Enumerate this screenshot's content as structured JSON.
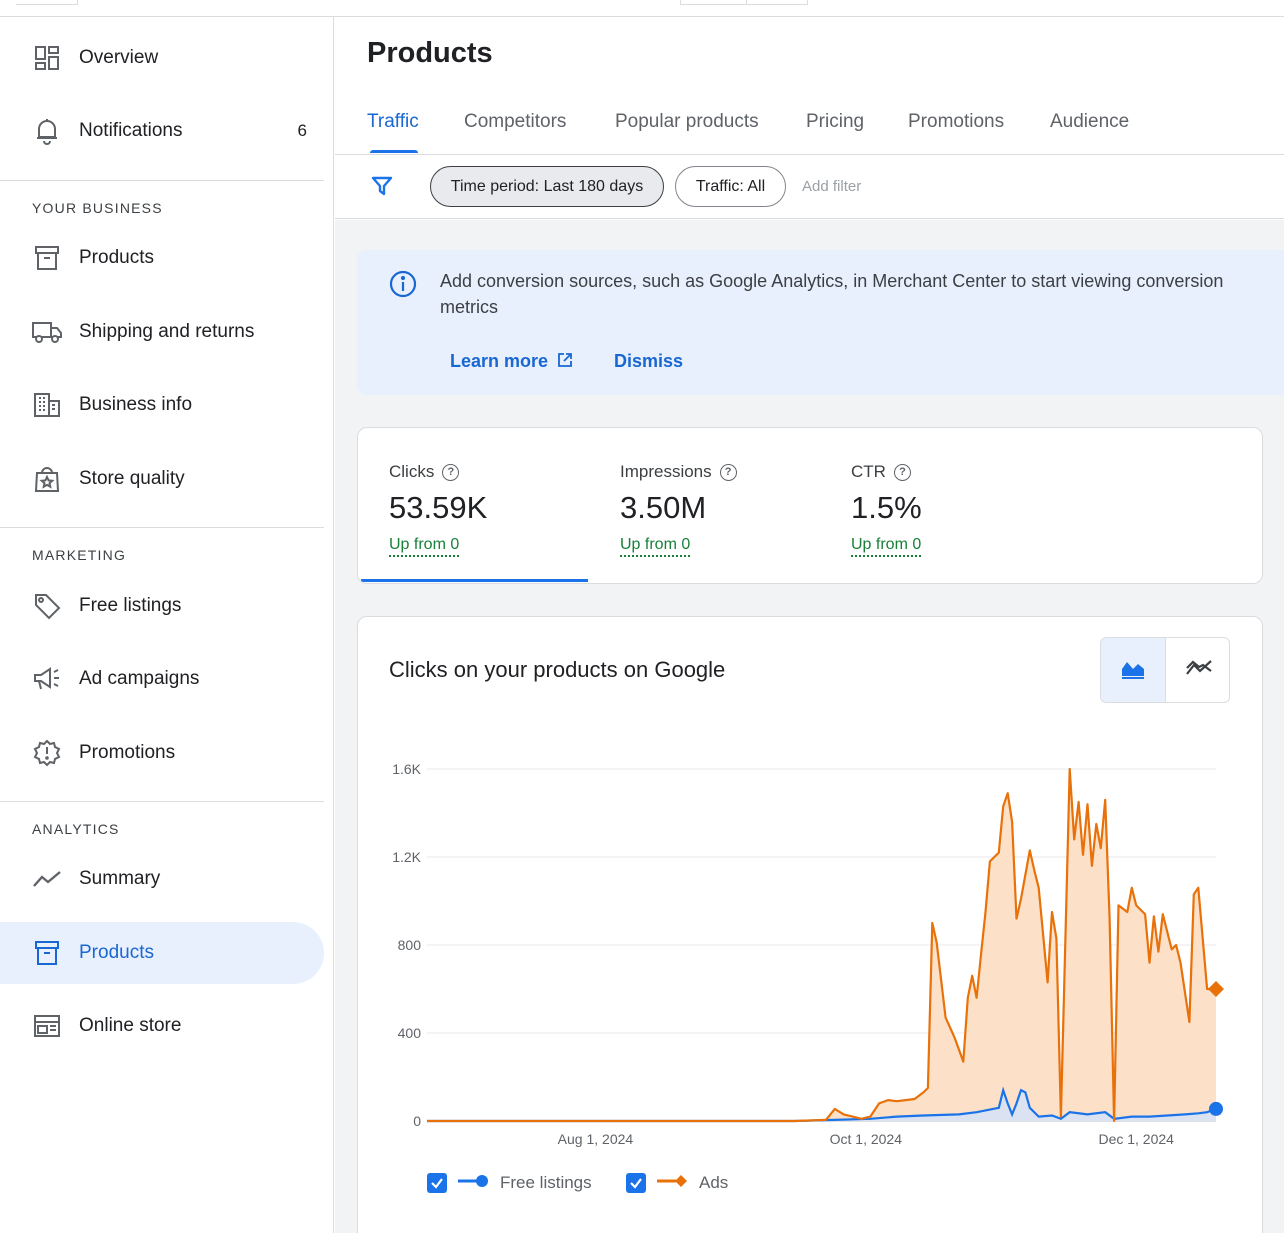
{
  "sidebar": {
    "items_top": [
      {
        "label": "Overview",
        "icon": "dashboard-icon"
      },
      {
        "label": "Notifications",
        "icon": "bell-icon",
        "count": "6"
      }
    ],
    "sections": [
      {
        "title": "YOUR BUSINESS",
        "items": [
          {
            "label": "Products",
            "icon": "archive-box-icon"
          },
          {
            "label": "Shipping and returns",
            "icon": "truck-icon"
          },
          {
            "label": "Business info",
            "icon": "building-icon"
          },
          {
            "label": "Store quality",
            "icon": "shopping-bag-star-icon"
          }
        ]
      },
      {
        "title": "MARKETING",
        "items": [
          {
            "label": "Free listings",
            "icon": "tag-icon"
          },
          {
            "label": "Ad campaigns",
            "icon": "megaphone-icon"
          },
          {
            "label": "Promotions",
            "icon": "promotion-badge-icon"
          }
        ]
      },
      {
        "title": "ANALYTICS",
        "items": [
          {
            "label": "Summary",
            "icon": "trend-line-icon"
          },
          {
            "label": "Products",
            "icon": "archive-box-icon",
            "active": true
          },
          {
            "label": "Online store",
            "icon": "storefront-window-icon"
          }
        ]
      }
    ]
  },
  "page": {
    "title": "Products",
    "tabs": [
      "Traffic",
      "Competitors",
      "Popular products",
      "Pricing",
      "Promotions",
      "Audience"
    ],
    "active_tab": "Traffic"
  },
  "filters": {
    "chips": [
      "Time period: Last 180 days",
      "Traffic: All"
    ],
    "add_filter": "Add filter"
  },
  "banner": {
    "message": "Add conversion sources, such as Google Analytics, in Merchant Center to start viewing conversion metrics",
    "learn_more": "Learn more",
    "dismiss": "Dismiss"
  },
  "metrics": [
    {
      "label": "Clicks",
      "value": "53.59K",
      "trend": "Up from 0"
    },
    {
      "label": "Impressions",
      "value": "3.50M",
      "trend": "Up from 0"
    },
    {
      "label": "CTR",
      "value": "1.5%",
      "trend": "Up from 0"
    }
  ],
  "colors": {
    "accent": "#1a73e8",
    "free_listings": "#1a73e8",
    "ads": "#e8710a",
    "ads_fill": "#fce0c8",
    "positive": "#188038"
  },
  "chart": {
    "title": "Clicks on your products on Google",
    "legend": [
      "Free listings",
      "Ads"
    ]
  },
  "chart_data": {
    "type": "area",
    "title": "Clicks on your products on Google",
    "xlabel": "",
    "ylabel": "",
    "ylim": [
      0,
      1600
    ],
    "y_ticks": [
      "0",
      "400",
      "800",
      "1.2K",
      "1.6K"
    ],
    "x_ticks": [
      "Aug 1, 2024",
      "Oct 1, 2024",
      "Dec 1, 2024"
    ],
    "x_range": [
      "2024-06-24",
      "2024-12-19"
    ],
    "grid": true,
    "legend_position": "bottom-left",
    "series": [
      {
        "name": "Ads",
        "points": [
          [
            "2024-06-24",
            0
          ],
          [
            "2024-09-15",
            0
          ],
          [
            "2024-09-22",
            5
          ],
          [
            "2024-09-24",
            55
          ],
          [
            "2024-09-26",
            30
          ],
          [
            "2024-09-28",
            20
          ],
          [
            "2024-09-30",
            10
          ],
          [
            "2024-10-02",
            20
          ],
          [
            "2024-10-04",
            80
          ],
          [
            "2024-10-06",
            95
          ],
          [
            "2024-10-08",
            90
          ],
          [
            "2024-10-10",
            95
          ],
          [
            "2024-10-12",
            100
          ],
          [
            "2024-10-14",
            130
          ],
          [
            "2024-10-15",
            150
          ],
          [
            "2024-10-16",
            900
          ],
          [
            "2024-10-17",
            810
          ],
          [
            "2024-10-19",
            470
          ],
          [
            "2024-10-21",
            380
          ],
          [
            "2024-10-23",
            270
          ],
          [
            "2024-10-24",
            560
          ],
          [
            "2024-10-25",
            660
          ],
          [
            "2024-10-26",
            560
          ],
          [
            "2024-10-27",
            760
          ],
          [
            "2024-10-28",
            950
          ],
          [
            "2024-10-29",
            1180
          ],
          [
            "2024-10-31",
            1220
          ],
          [
            "2024-11-01",
            1430
          ],
          [
            "2024-11-02",
            1490
          ],
          [
            "2024-11-03",
            1360
          ],
          [
            "2024-11-04",
            920
          ],
          [
            "2024-11-05",
            1010
          ],
          [
            "2024-11-06",
            1120
          ],
          [
            "2024-11-07",
            1230
          ],
          [
            "2024-11-08",
            1140
          ],
          [
            "2024-11-09",
            1060
          ],
          [
            "2024-11-11",
            630
          ],
          [
            "2024-11-12",
            950
          ],
          [
            "2024-11-13",
            830
          ],
          [
            "2024-11-14",
            20
          ],
          [
            "2024-11-16",
            1600
          ],
          [
            "2024-11-17",
            1280
          ],
          [
            "2024-11-18",
            1450
          ],
          [
            "2024-11-19",
            1210
          ],
          [
            "2024-11-20",
            1440
          ],
          [
            "2024-11-21",
            1160
          ],
          [
            "2024-11-22",
            1350
          ],
          [
            "2024-11-23",
            1240
          ],
          [
            "2024-11-24",
            1460
          ],
          [
            "2024-11-25",
            920
          ],
          [
            "2024-11-26",
            0
          ],
          [
            "2024-11-27",
            980
          ],
          [
            "2024-11-29",
            950
          ],
          [
            "2024-11-30",
            1060
          ],
          [
            "2024-12-01",
            980
          ],
          [
            "2024-12-03",
            940
          ],
          [
            "2024-12-04",
            720
          ],
          [
            "2024-12-05",
            930
          ],
          [
            "2024-12-06",
            770
          ],
          [
            "2024-12-07",
            940
          ],
          [
            "2024-12-09",
            780
          ],
          [
            "2024-12-10",
            800
          ],
          [
            "2024-12-11",
            720
          ],
          [
            "2024-12-13",
            450
          ],
          [
            "2024-12-14",
            1030
          ],
          [
            "2024-12-15",
            1060
          ],
          [
            "2024-12-17",
            600
          ],
          [
            "2024-12-19",
            600
          ]
        ]
      },
      {
        "name": "Free listings",
        "points": [
          [
            "2024-06-24",
            0
          ],
          [
            "2024-09-15",
            0
          ],
          [
            "2024-09-24",
            5
          ],
          [
            "2024-10-02",
            10
          ],
          [
            "2024-10-08",
            20
          ],
          [
            "2024-10-14",
            25
          ],
          [
            "2024-10-22",
            30
          ],
          [
            "2024-10-26",
            40
          ],
          [
            "2024-10-31",
            60
          ],
          [
            "2024-11-01",
            140
          ],
          [
            "2024-11-02",
            80
          ],
          [
            "2024-11-03",
            30
          ],
          [
            "2024-11-04",
            80
          ],
          [
            "2024-11-05",
            140
          ],
          [
            "2024-11-06",
            130
          ],
          [
            "2024-11-07",
            60
          ],
          [
            "2024-11-09",
            20
          ],
          [
            "2024-11-12",
            25
          ],
          [
            "2024-11-14",
            10
          ],
          [
            "2024-11-16",
            40
          ],
          [
            "2024-11-20",
            30
          ],
          [
            "2024-11-24",
            40
          ],
          [
            "2024-11-26",
            10
          ],
          [
            "2024-11-30",
            20
          ],
          [
            "2024-12-04",
            20
          ],
          [
            "2024-12-08",
            25
          ],
          [
            "2024-12-12",
            30
          ],
          [
            "2024-12-15",
            35
          ],
          [
            "2024-12-17",
            40
          ],
          [
            "2024-12-19",
            55
          ]
        ]
      }
    ]
  }
}
